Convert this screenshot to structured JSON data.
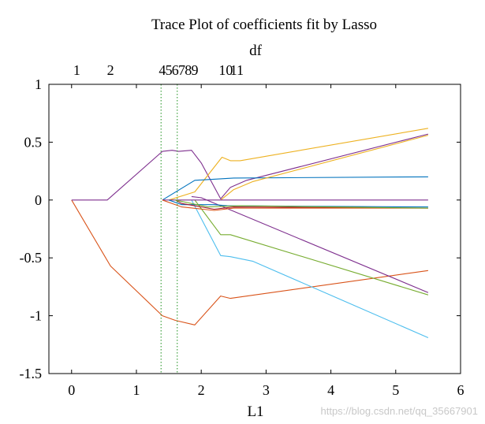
{
  "chart_data": {
    "type": "line",
    "title": "Trace Plot of coefficients fit by Lasso",
    "xlabel": "L1",
    "top_axis_label": "df",
    "xlim": [
      -0.35,
      6
    ],
    "ylim": [
      -1.5,
      1
    ],
    "xticks": [
      0,
      1,
      2,
      3,
      4,
      5,
      6
    ],
    "xtick_labels": [
      "0",
      "1",
      "2",
      "3",
      "4",
      "5",
      "6"
    ],
    "yticks": [
      1,
      0.5,
      0,
      -0.5,
      -1,
      -1.5
    ],
    "ytick_labels": [
      "1",
      "0.5",
      "0",
      "-0.5",
      "-1",
      "-1.5"
    ],
    "top_ticks": [
      {
        "label": "1",
        "x": 0.08
      },
      {
        "label": "2",
        "x": 0.6
      },
      {
        "label": "4",
        "x": 1.4
      },
      {
        "label": "5",
        "x": 1.5
      },
      {
        "label": "6",
        "x": 1.6
      },
      {
        "label": "7",
        "x": 1.7
      },
      {
        "label": "8",
        "x": 1.8
      },
      {
        "label": "9",
        "x": 1.9
      },
      {
        "label": "10",
        "x": 2.38
      },
      {
        "label": "11",
        "x": 2.55
      }
    ],
    "vlines": [
      {
        "x": 1.38,
        "color": "#1a8f1a"
      },
      {
        "x": 1.63,
        "color": "#1a8f1a"
      }
    ],
    "grid": false,
    "series": [
      {
        "color": "#d95319",
        "points": [
          [
            0,
            0
          ],
          [
            0.6,
            -0.57
          ],
          [
            1.4,
            -1.0
          ],
          [
            1.6,
            -1.04
          ],
          [
            1.9,
            -1.08
          ],
          [
            2.3,
            -0.83
          ],
          [
            2.45,
            -0.85
          ],
          [
            5.5,
            -0.61
          ]
        ]
      },
      {
        "color": "#7e2f8e",
        "points": [
          [
            0,
            0
          ],
          [
            0.55,
            0
          ],
          [
            1.4,
            0.42
          ],
          [
            1.55,
            0.43
          ],
          [
            1.65,
            0.42
          ],
          [
            1.85,
            0.43
          ],
          [
            2.0,
            0.32
          ],
          [
            2.3,
            0.01
          ],
          [
            2.45,
            0.11
          ],
          [
            2.7,
            0.17
          ],
          [
            5.5,
            0.57
          ]
        ]
      },
      {
        "color": "#edb120",
        "points": [
          [
            1.5,
            0
          ],
          [
            1.9,
            0.07
          ],
          [
            2.32,
            0.37
          ],
          [
            2.45,
            0.34
          ],
          [
            2.6,
            0.34
          ],
          [
            5.5,
            0.62
          ]
        ]
      },
      {
        "color": "#0072bd",
        "points": [
          [
            1.4,
            0
          ],
          [
            1.9,
            0.17
          ],
          [
            2.5,
            0.19
          ],
          [
            5.5,
            0.2
          ]
        ]
      },
      {
        "color": "#edb120",
        "points": [
          [
            2.3,
            0
          ],
          [
            2.5,
            0.09
          ],
          [
            2.8,
            0.16
          ],
          [
            5.5,
            0.56
          ]
        ]
      },
      {
        "color": "#4dbeee",
        "points": [
          [
            1.85,
            0
          ],
          [
            2.3,
            -0.48
          ],
          [
            2.45,
            -0.49
          ],
          [
            2.8,
            -0.53
          ],
          [
            5.5,
            -1.19
          ]
        ]
      },
      {
        "color": "#77ac30",
        "points": [
          [
            1.9,
            0
          ],
          [
            2.3,
            -0.3
          ],
          [
            2.45,
            -0.3
          ],
          [
            5.5,
            -0.82
          ]
        ]
      },
      {
        "color": "#7e2f8e",
        "points": [
          [
            1.85,
            0.03
          ],
          [
            2.0,
            0.02
          ],
          [
            5.5,
            -0.8
          ]
        ]
      },
      {
        "color": "#7e2f8e",
        "points": [
          [
            1.4,
            0
          ],
          [
            5.5,
            0
          ]
        ]
      },
      {
        "color": "#0072bd",
        "points": [
          [
            1.5,
            0
          ],
          [
            1.7,
            -0.04
          ],
          [
            2.2,
            -0.04
          ],
          [
            2.4,
            -0.05
          ],
          [
            5.5,
            -0.06
          ]
        ]
      },
      {
        "color": "#a2142f",
        "points": [
          [
            1.6,
            0
          ],
          [
            1.7,
            -0.03
          ],
          [
            2.2,
            -0.08
          ],
          [
            2.5,
            -0.06
          ],
          [
            5.5,
            -0.07
          ]
        ]
      },
      {
        "color": "#d95319",
        "points": [
          [
            1.4,
            0
          ],
          [
            1.7,
            -0.06
          ],
          [
            2.2,
            -0.09
          ],
          [
            2.5,
            -0.07
          ],
          [
            5.5,
            -0.07
          ]
        ]
      },
      {
        "color": "#77ac30",
        "points": [
          [
            1.6,
            0
          ],
          [
            2.1,
            -0.06
          ],
          [
            2.6,
            -0.05
          ],
          [
            5.5,
            -0.07
          ]
        ]
      }
    ]
  },
  "watermark": "https://blog.csdn.net/qq_35667901"
}
